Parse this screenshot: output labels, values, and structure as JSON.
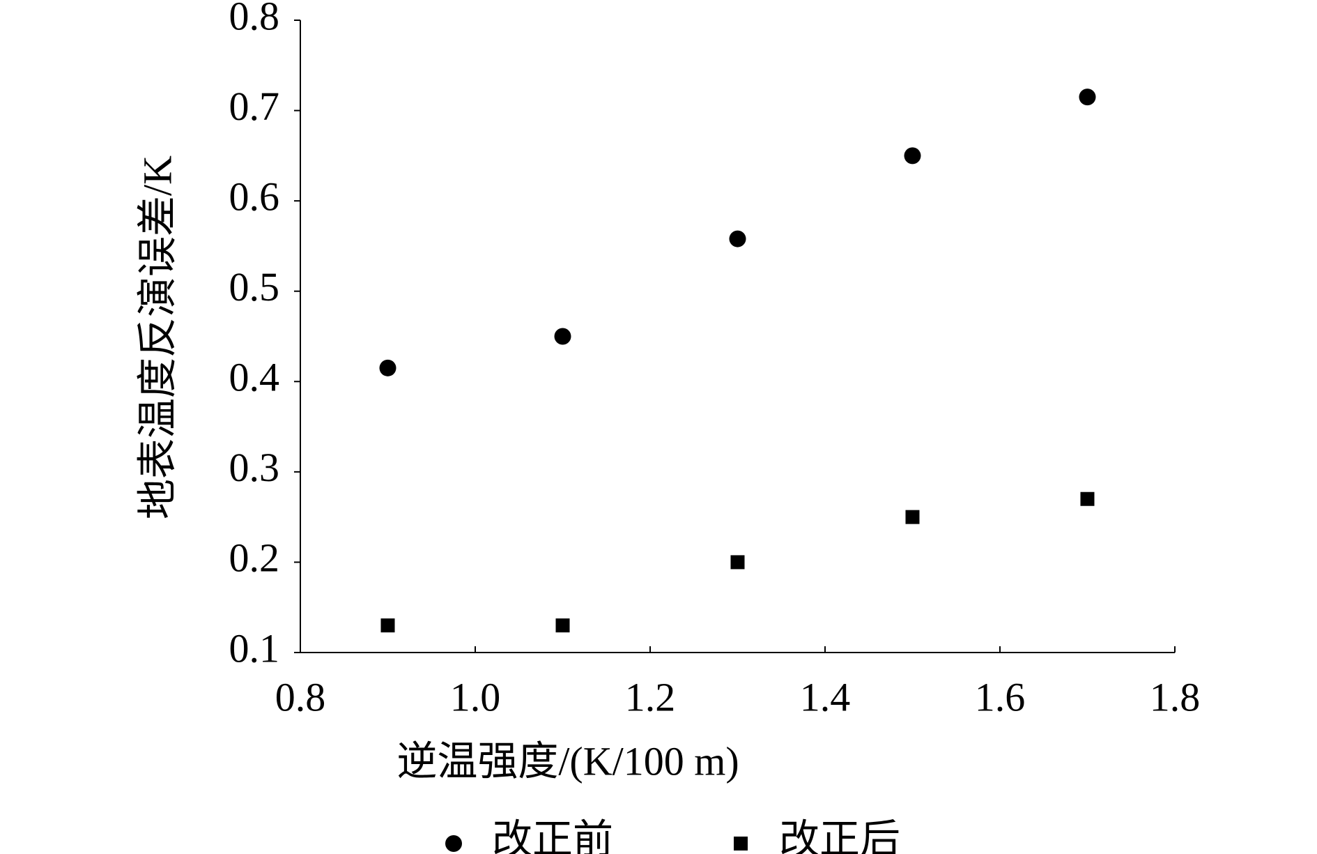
{
  "chart_data": {
    "type": "scatter",
    "x_label": "逆温强度/(K/100 m)",
    "y_label": "地表温度反演误差/K",
    "x": [
      0.9,
      1.1,
      1.3,
      1.5,
      1.7
    ],
    "series": [
      {
        "name": "改正前",
        "color": "#000000",
        "marker": "circle",
        "values": [
          0.415,
          0.45,
          0.558,
          0.65,
          0.715
        ]
      },
      {
        "name": "改正后",
        "color": "#000000",
        "marker": "square",
        "values": [
          0.13,
          0.13,
          0.2,
          0.25,
          0.27
        ]
      }
    ],
    "xlim": [
      0.8,
      1.8
    ],
    "xticks": [
      0.8,
      {
        "value": 1,
        "label": "1.0"
      },
      1.2,
      1.4,
      1.6,
      1.8
    ],
    "ylim": [
      0.1,
      0.8
    ],
    "yticks": [
      0.1,
      0.2,
      0.3,
      0.4,
      0.5,
      0.6,
      0.7,
      0.8
    ],
    "grid": false,
    "legend": "bottom"
  }
}
